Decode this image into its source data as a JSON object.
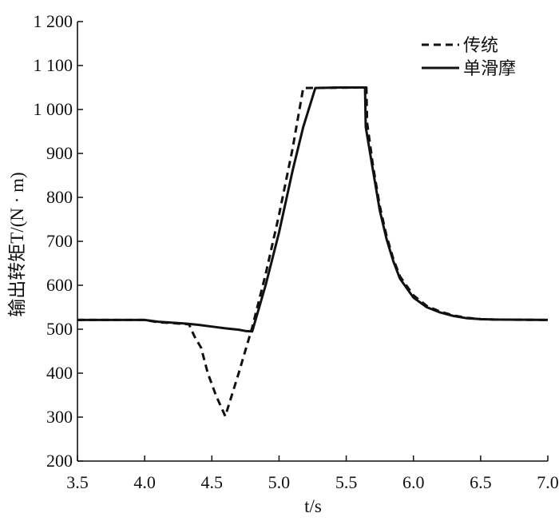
{
  "chart_data": {
    "type": "line",
    "title": "",
    "xlabel": "t/s",
    "ylabel": "输出转矩T/(N · m)",
    "xlim": [
      3.5,
      7.0
    ],
    "ylim": [
      200,
      1200
    ],
    "x_ticks": [
      {
        "value": 3.5,
        "label": "3.5"
      },
      {
        "value": 4.0,
        "label": "4.0"
      },
      {
        "value": 4.5,
        "label": "4.5"
      },
      {
        "value": 5.0,
        "label": "5.0"
      },
      {
        "value": 5.5,
        "label": "5.5"
      },
      {
        "value": 6.0,
        "label": "6.0"
      },
      {
        "value": 6.5,
        "label": "6.5"
      },
      {
        "value": 7.0,
        "label": "7.0"
      }
    ],
    "y_ticks": [
      {
        "value": 200,
        "label": "200"
      },
      {
        "value": 300,
        "label": "300"
      },
      {
        "value": 400,
        "label": "400"
      },
      {
        "value": 500,
        "label": "500"
      },
      {
        "value": 600,
        "label": "600"
      },
      {
        "value": 700,
        "label": "700"
      },
      {
        "value": 800,
        "label": "800"
      },
      {
        "value": 900,
        "label": "900"
      },
      {
        "value": 1000,
        "label": "1 000"
      },
      {
        "value": 1100,
        "label": "1 100"
      },
      {
        "value": 1200,
        "label": "1 200"
      }
    ],
    "grid": false,
    "legend_position": "top-right",
    "series": [
      {
        "name": "传统",
        "style": "dashed",
        "color": "#111111",
        "points": [
          [
            3.5,
            521
          ],
          [
            4.0,
            521
          ],
          [
            4.1,
            516
          ],
          [
            4.2,
            514
          ],
          [
            4.33,
            511
          ],
          [
            4.37,
            484
          ],
          [
            4.42,
            458
          ],
          [
            4.47,
            400
          ],
          [
            4.53,
            350
          ],
          [
            4.6,
            302
          ],
          [
            4.7,
            400
          ],
          [
            4.8,
            504
          ],
          [
            4.9,
            625
          ],
          [
            5.0,
            760
          ],
          [
            5.1,
            910
          ],
          [
            5.18,
            1049
          ],
          [
            5.6,
            1050
          ],
          [
            5.65,
            1050
          ],
          [
            5.655,
            970
          ],
          [
            5.7,
            870
          ],
          [
            5.75,
            780
          ],
          [
            5.8,
            712
          ],
          [
            5.85,
            660
          ],
          [
            5.9,
            620
          ],
          [
            6.0,
            577
          ],
          [
            6.1,
            553
          ],
          [
            6.2,
            540
          ],
          [
            6.3,
            531
          ],
          [
            6.4,
            526
          ],
          [
            6.5,
            523
          ],
          [
            6.6,
            522
          ],
          [
            7.0,
            521
          ]
        ]
      },
      {
        "name": "单滑摩",
        "style": "solid",
        "color": "#111111",
        "points": [
          [
            3.5,
            521
          ],
          [
            4.0,
            521
          ],
          [
            4.1,
            517
          ],
          [
            4.2,
            515
          ],
          [
            4.3,
            513
          ],
          [
            4.4,
            510
          ],
          [
            4.5,
            506
          ],
          [
            4.6,
            502
          ],
          [
            4.7,
            499
          ],
          [
            4.75,
            496
          ],
          [
            4.8,
            495
          ],
          [
            4.9,
            600
          ],
          [
            5.0,
            720
          ],
          [
            5.1,
            860
          ],
          [
            5.18,
            960
          ],
          [
            5.27,
            1049
          ],
          [
            5.45,
            1050
          ],
          [
            5.64,
            1050
          ],
          [
            5.645,
            960
          ],
          [
            5.7,
            860
          ],
          [
            5.75,
            770
          ],
          [
            5.8,
            705
          ],
          [
            5.85,
            655
          ],
          [
            5.9,
            615
          ],
          [
            6.0,
            572
          ],
          [
            6.1,
            550
          ],
          [
            6.2,
            538
          ],
          [
            6.3,
            530
          ],
          [
            6.4,
            525
          ],
          [
            6.5,
            523
          ],
          [
            6.6,
            522
          ],
          [
            7.0,
            521
          ]
        ]
      }
    ]
  }
}
